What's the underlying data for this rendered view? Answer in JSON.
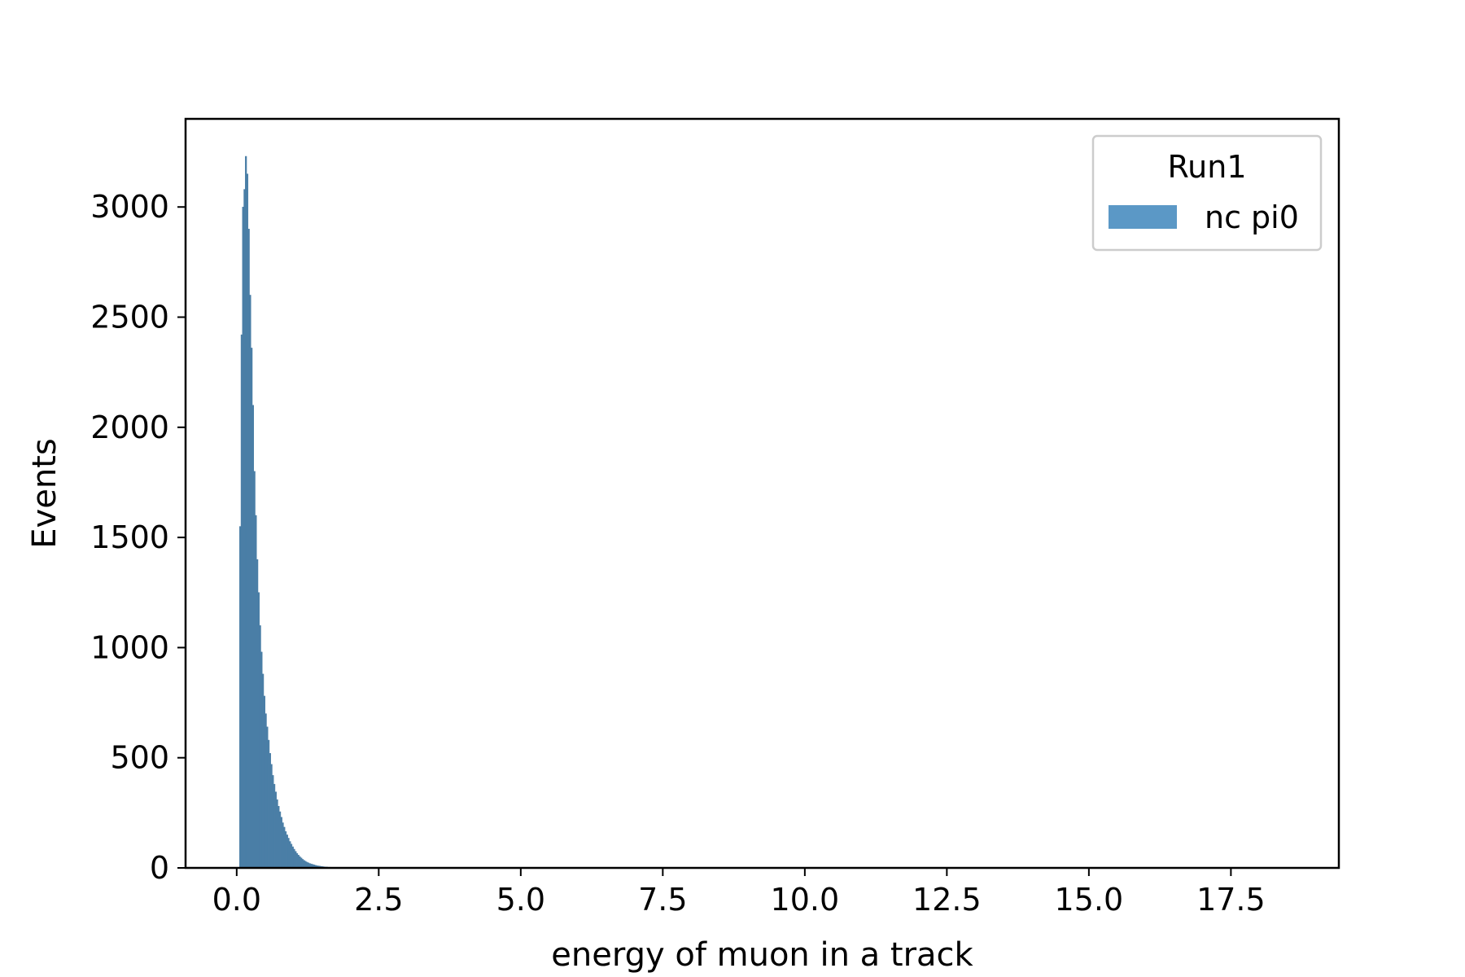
{
  "chart_data": {
    "type": "bar",
    "subtype": "histogram",
    "xlabel": "energy of muon in a track",
    "ylabel": "Events",
    "xlim": [
      -0.9,
      19.4
    ],
    "ylim": [
      0,
      3400
    ],
    "x_ticks": [
      0.0,
      2.5,
      5.0,
      7.5,
      10.0,
      12.5,
      15.0,
      17.5
    ],
    "x_tick_labels": [
      "0.0",
      "2.5",
      "5.0",
      "7.5",
      "10.0",
      "12.5",
      "15.0",
      "17.5"
    ],
    "y_ticks": [
      0,
      500,
      1000,
      1500,
      2000,
      2500,
      3000
    ],
    "y_tick_labels": [
      "0",
      "500",
      "1000",
      "1500",
      "2000",
      "2500",
      "3000"
    ],
    "grid": false,
    "legend": {
      "title": "Run1",
      "placement": "top-right",
      "entries": [
        {
          "label": "nc pi0",
          "color": "#5b98c6"
        }
      ]
    },
    "series": [
      {
        "name": "nc pi0",
        "color": "#4a7ea6",
        "bin_width": 0.025,
        "x_start": 0.05,
        "values": [
          1550,
          2420,
          3000,
          3080,
          3230,
          3150,
          2900,
          2600,
          2360,
          2100,
          1800,
          1600,
          1400,
          1250,
          1100,
          980,
          880,
          780,
          700,
          640,
          580,
          520,
          470,
          420,
          380,
          345,
          310,
          280,
          255,
          230,
          205,
          185,
          165,
          150,
          135,
          120,
          108,
          96,
          85,
          75,
          66,
          58,
          51,
          45,
          39,
          34,
          30,
          26,
          23,
          20,
          18,
          16,
          14,
          12,
          10,
          9,
          8,
          7,
          6,
          5,
          4,
          4,
          3,
          3,
          2,
          2,
          2,
          1,
          1,
          1,
          1,
          1
        ]
      }
    ]
  }
}
